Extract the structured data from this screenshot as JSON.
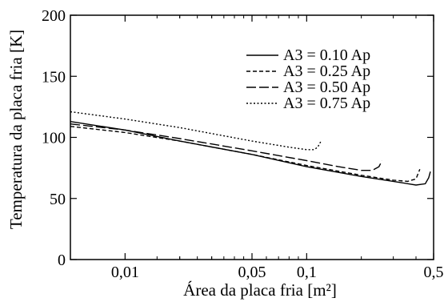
{
  "chart_data": {
    "type": "line",
    "title": "",
    "xlabel": "Área da placa fria [m²]",
    "ylabel": "Temperatura da placa fria [K]",
    "xscale": "log",
    "xlim": [
      0.005,
      0.5
    ],
    "ylim": [
      0,
      200
    ],
    "xticks": [
      {
        "value": 0.01,
        "label": "0,01"
      },
      {
        "value": 0.05,
        "label": "0,05"
      },
      {
        "value": 0.1,
        "label": "0,1"
      },
      {
        "value": 0.5,
        "label": "0,5"
      }
    ],
    "yticks": [
      {
        "value": 0,
        "label": "0"
      },
      {
        "value": 50,
        "label": "50"
      },
      {
        "value": 100,
        "label": "100"
      },
      {
        "value": 150,
        "label": "150"
      },
      {
        "value": 200,
        "label": "200"
      }
    ],
    "legend_position": "top-right",
    "grid": false,
    "series": [
      {
        "name": "A3 = 0.10 Ap",
        "style": "solid",
        "points": [
          [
            0.005,
            113
          ],
          [
            0.01,
            106
          ],
          [
            0.02,
            97
          ],
          [
            0.05,
            86
          ],
          [
            0.1,
            76
          ],
          [
            0.2,
            68
          ],
          [
            0.3,
            64
          ],
          [
            0.4,
            61
          ],
          [
            0.45,
            62
          ],
          [
            0.47,
            67
          ],
          [
            0.48,
            72
          ]
        ]
      },
      {
        "name": "A3 = 0.25 Ap",
        "style": "short-dash",
        "points": [
          [
            0.005,
            109
          ],
          [
            0.01,
            104
          ],
          [
            0.02,
            97
          ],
          [
            0.05,
            86
          ],
          [
            0.1,
            77
          ],
          [
            0.2,
            69
          ],
          [
            0.3,
            65
          ],
          [
            0.36,
            64
          ],
          [
            0.4,
            66
          ],
          [
            0.41,
            70
          ],
          [
            0.42,
            74
          ]
        ]
      },
      {
        "name": "A3 = 0.50 Ap",
        "style": "long-dash",
        "points": [
          [
            0.005,
            111
          ],
          [
            0.01,
            106
          ],
          [
            0.02,
            99
          ],
          [
            0.05,
            89
          ],
          [
            0.1,
            81
          ],
          [
            0.15,
            76
          ],
          [
            0.2,
            73
          ],
          [
            0.23,
            73
          ],
          [
            0.25,
            76
          ],
          [
            0.26,
            81
          ]
        ]
      },
      {
        "name": "A3 = 0.75 Ap",
        "style": "dotted",
        "points": [
          [
            0.005,
            121
          ],
          [
            0.01,
            115
          ],
          [
            0.02,
            108
          ],
          [
            0.05,
            97
          ],
          [
            0.08,
            92
          ],
          [
            0.1,
            90
          ],
          [
            0.11,
            90
          ],
          [
            0.115,
            92
          ],
          [
            0.12,
            97
          ]
        ]
      }
    ]
  }
}
